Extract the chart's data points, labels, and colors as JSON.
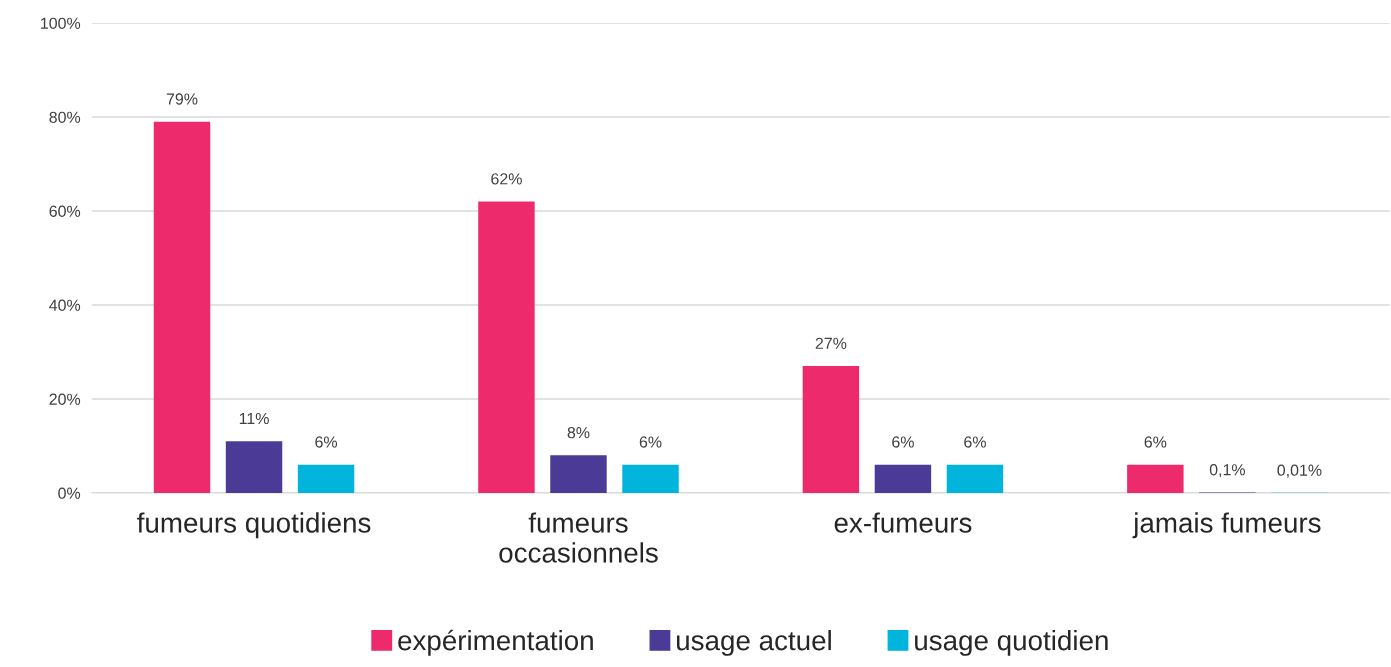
{
  "chart_data": {
    "type": "bar",
    "categories": [
      "fumeurs quotidiens",
      "fumeurs\noccasionnels",
      "ex-fumeurs",
      "jamais fumeurs"
    ],
    "series": [
      {
        "name": "expérimentation",
        "color": "#ec2a6c",
        "values": [
          79,
          62,
          27,
          6
        ],
        "value_labels": [
          "79%",
          "62%",
          "27%",
          "6%"
        ]
      },
      {
        "name": "usage actuel",
        "color": "#4b3a96",
        "values": [
          11,
          8,
          6,
          0.1
        ],
        "value_labels": [
          "11%",
          "8%",
          "6%",
          "0,1%"
        ]
      },
      {
        "name": "usage quotidien",
        "color": "#00b4dc",
        "values": [
          6,
          6,
          6,
          0.01
        ],
        "value_labels": [
          "6%",
          "6%",
          "6%",
          "0,01%"
        ]
      }
    ],
    "ylim": [
      0,
      100
    ],
    "yticks": [
      {
        "value": 0,
        "label": "0%"
      },
      {
        "value": 20,
        "label": "20%"
      },
      {
        "value": 40,
        "label": "40%"
      },
      {
        "value": 60,
        "label": "60%"
      },
      {
        "value": 80,
        "label": "80%"
      },
      {
        "value": 100,
        "label": "100%"
      }
    ],
    "grid": "y",
    "legend": "bottom"
  }
}
